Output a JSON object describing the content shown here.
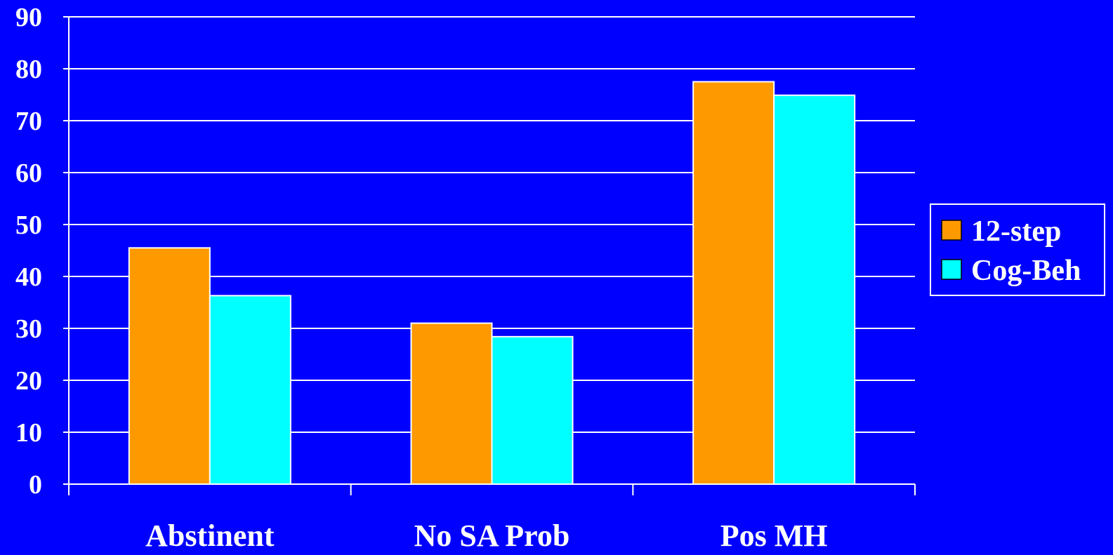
{
  "chart_data": {
    "type": "bar",
    "title": "",
    "xlabel": "",
    "ylabel": "",
    "ylim": [
      0,
      90
    ],
    "yticks": [
      0,
      10,
      20,
      30,
      40,
      50,
      60,
      70,
      80,
      90
    ],
    "grid": true,
    "legend_position": "right",
    "categories": [
      "Abstinent",
      "No SA Prob",
      "Pos MH"
    ],
    "series": [
      {
        "name": "12-step",
        "color": "#ff9900",
        "values": [
          45.5,
          31,
          77.5
        ]
      },
      {
        "name": "Cog-Beh",
        "color": "#00ffff",
        "values": [
          36.3,
          28.4,
          74.9
        ]
      }
    ],
    "colors": {
      "background": "#0000ff",
      "grid": "#ffffff",
      "bar_border": "#ffffff",
      "text": "#ffffff"
    }
  }
}
